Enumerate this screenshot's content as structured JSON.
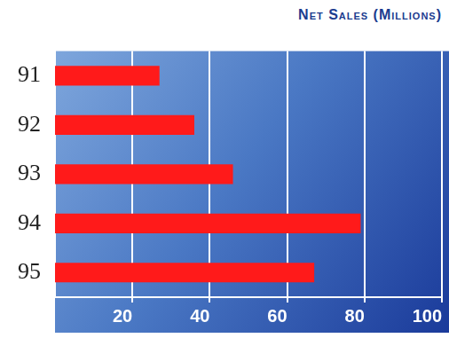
{
  "chart_data": {
    "type": "bar",
    "title": "Net Sales (Millions)",
    "orientation": "horizontal",
    "categories": [
      "91",
      "92",
      "93",
      "94",
      "95"
    ],
    "values": [
      27,
      36,
      46,
      79,
      67
    ],
    "color": "#ff1a1a",
    "xlim": [
      0,
      100
    ],
    "xticks": [
      20,
      40,
      60,
      80,
      100
    ],
    "grid": true
  }
}
